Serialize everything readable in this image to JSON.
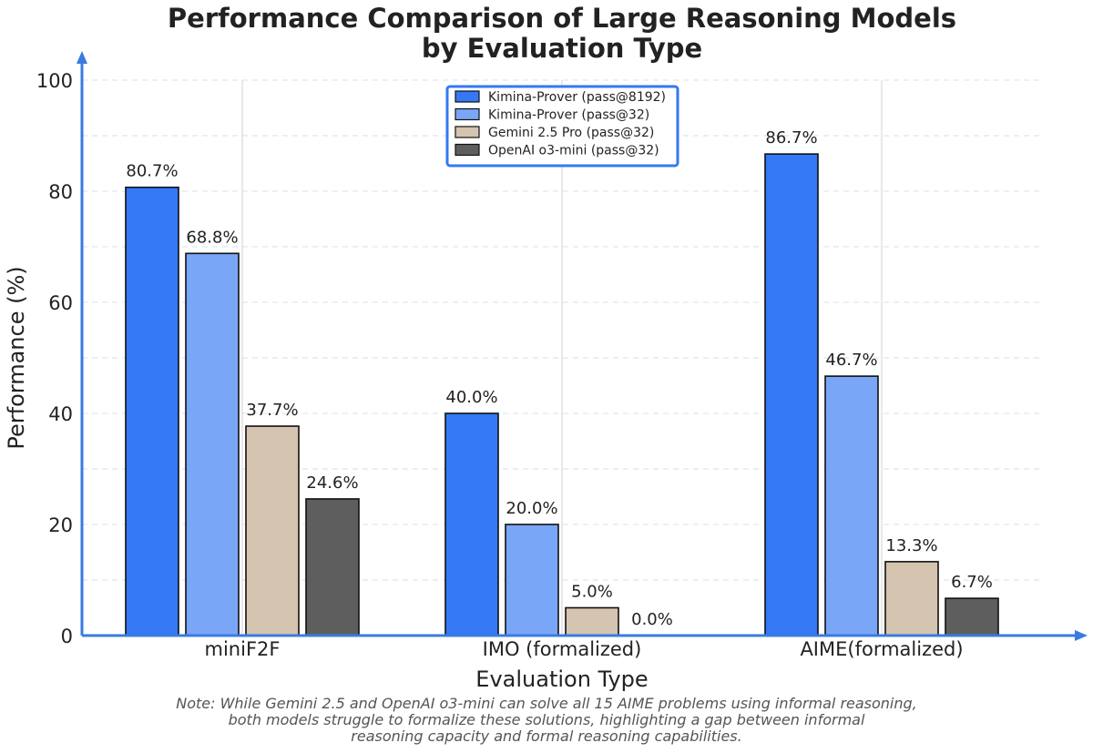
{
  "chart_data": {
    "type": "bar",
    "title_lines": [
      "Performance Comparison of Large Reasoning Models",
      "by Evaluation Type"
    ],
    "xlabel": "Evaluation Type",
    "ylabel": "Performance (%)",
    "ylim": [
      0,
      100
    ],
    "yticks": [
      0,
      20,
      40,
      60,
      80,
      100
    ],
    "categories": [
      "miniF2F",
      "IMO (formalized)",
      "AIME(formalized)"
    ],
    "series": [
      {
        "name": "Kimina-Prover (pass@8192)",
        "color": "#3478f6",
        "values": [
          80.7,
          40.0,
          86.7
        ],
        "labels": [
          "80.7%",
          "40.0%",
          "86.7%"
        ]
      },
      {
        "name": "Kimina-Prover (pass@32)",
        "color": "#7aa6f7",
        "values": [
          68.8,
          20.0,
          46.7
        ],
        "labels": [
          "68.8%",
          "20.0%",
          "46.7%"
        ]
      },
      {
        "name": "Gemini 2.5 Pro (pass@32)",
        "color": "#d4c4b0",
        "values": [
          37.7,
          5.0,
          13.3
        ],
        "labels": [
          "37.7%",
          "5.0%",
          "13.3%"
        ]
      },
      {
        "name": "OpenAI o3-mini (pass@32)",
        "color": "#5e5e5e",
        "values": [
          24.6,
          0.0,
          6.7
        ],
        "labels": [
          "24.6%",
          "0.0%",
          "6.7%"
        ]
      }
    ],
    "legend_position": "top-center",
    "legend_border_color": "#3478f6",
    "axis_color": "#3a7be0",
    "grid": true,
    "note_lines": [
      "Note: While Gemini 2.5 and OpenAI o3-mini can solve all 15 AIME problems using informal reasoning,",
      "both models struggle to formalize these solutions, highlighting a gap between informal",
      "reasoning capacity and formal reasoning capabilities."
    ]
  }
}
